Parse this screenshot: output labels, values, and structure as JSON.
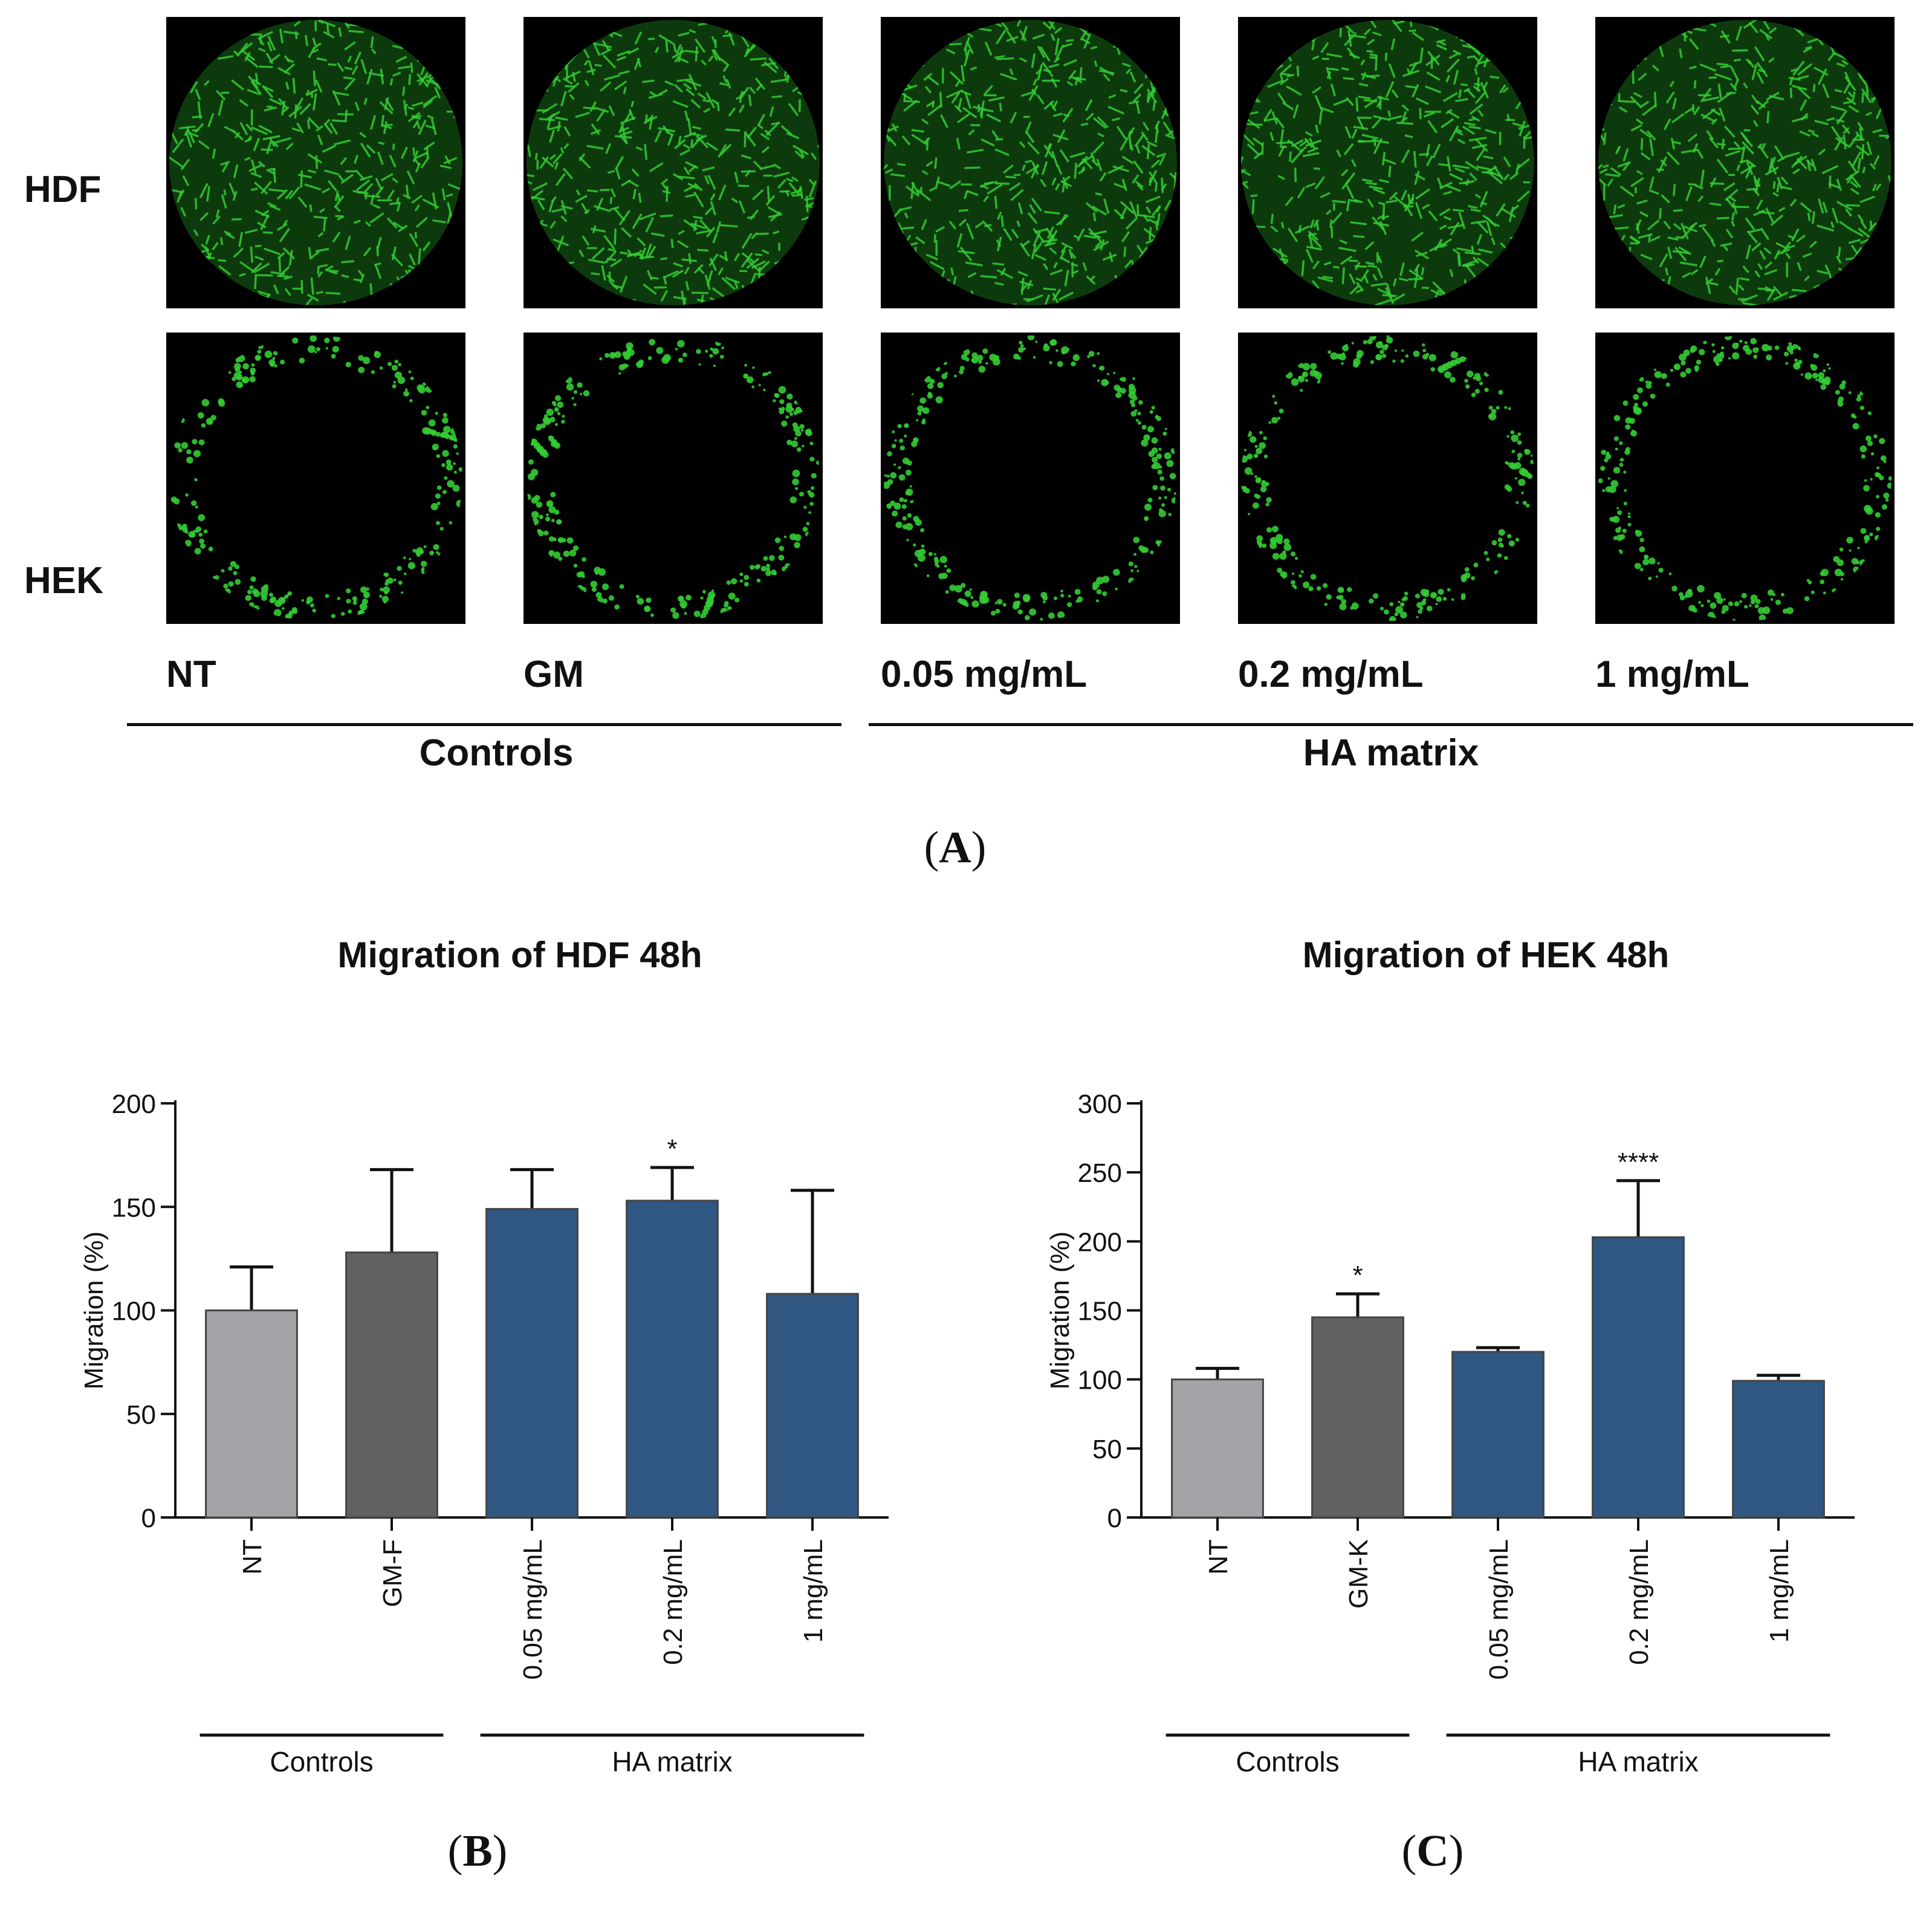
{
  "panel_a": {
    "row_labels": [
      "HDF",
      "HEK"
    ],
    "conditions": [
      "NT",
      "GM",
      "0.05 mg/mL",
      "0.2 mg/mL",
      "1 mg/mL"
    ],
    "groups": [
      "Controls",
      "HA matrix"
    ],
    "panel_letter": "A"
  },
  "panel_b": {
    "panel_letter": "B"
  },
  "panel_c": {
    "panel_letter": "C"
  },
  "colors": {
    "nt": "#a4a4a8",
    "gm": "#616161",
    "ha": "#305781",
    "cell_fluorescence": "#33cc33"
  },
  "chart_data": [
    {
      "type": "bar",
      "title": "Migration of HDF 48h",
      "ylabel": "Migration (%)",
      "xlabel": "",
      "categories": [
        "NT",
        "GM-F",
        "0.05 mg/mL",
        "0.2 mg/mL",
        "1 mg/mL"
      ],
      "values": [
        100,
        128,
        149,
        153,
        108
      ],
      "errors": [
        21,
        40,
        19,
        16,
        50
      ],
      "significance": [
        "",
        "",
        "",
        "*",
        ""
      ],
      "ylim": [
        0,
        200
      ],
      "yticks": [
        0,
        50,
        100,
        150,
        200
      ],
      "groups": [
        {
          "label": "Controls",
          "categories": [
            "NT",
            "GM-F"
          ]
        },
        {
          "label": "HA matrix",
          "categories": [
            "0.05 mg/mL",
            "0.2 mg/mL",
            "1 mg/mL"
          ]
        }
      ]
    },
    {
      "type": "bar",
      "title": "Migration of HEK 48h",
      "ylabel": "Migration (%)",
      "xlabel": "",
      "categories": [
        "NT",
        "GM-K",
        "0.05 mg/mL",
        "0.2 mg/mL",
        "1 mg/mL"
      ],
      "values": [
        100,
        145,
        120,
        203,
        99
      ],
      "errors": [
        8,
        17,
        3,
        41,
        4
      ],
      "significance": [
        "",
        "*",
        "",
        "****",
        ""
      ],
      "ylim": [
        0,
        300
      ],
      "yticks": [
        0,
        50,
        100,
        150,
        200,
        250,
        300
      ],
      "groups": [
        {
          "label": "Controls",
          "categories": [
            "NT",
            "GM-K"
          ]
        },
        {
          "label": "HA matrix",
          "categories": [
            "0.05 mg/mL",
            "0.2 mg/mL",
            "1 mg/mL"
          ]
        }
      ]
    }
  ]
}
